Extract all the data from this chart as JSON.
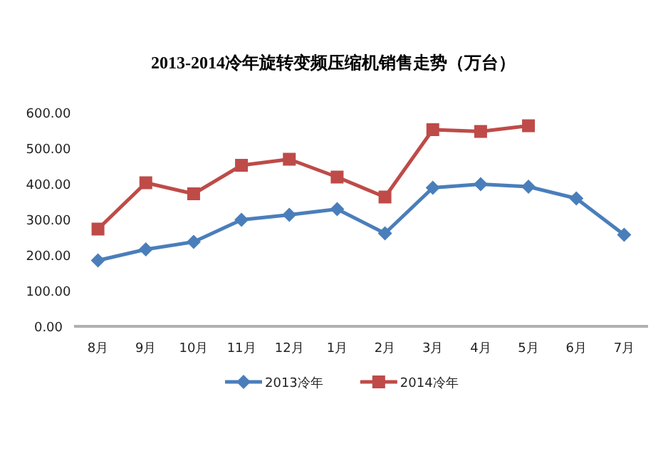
{
  "chart_data": {
    "type": "line",
    "title": "2013-2014冷年旋转变频压缩机销售走势（万台）",
    "categories": [
      "8月",
      "9月",
      "10月",
      "11月",
      "12月",
      "1月",
      "2月",
      "3月",
      "4月",
      "5月",
      "6月",
      "7月"
    ],
    "series": [
      {
        "name": "2013冷年",
        "color": "#4a7ebb",
        "marker": "diamond",
        "values": [
          185,
          216,
          237,
          299,
          313,
          329,
          261,
          389,
          399,
          392,
          359,
          257
        ]
      },
      {
        "name": "2014冷年",
        "color": "#be4b48",
        "marker": "square",
        "values": [
          273,
          403,
          372,
          452,
          469,
          419,
          363,
          552,
          547,
          563,
          null,
          null
        ]
      }
    ],
    "ylim": [
      0,
      600
    ],
    "yticks": [
      {
        "value": 0,
        "label": "0.00"
      },
      {
        "value": 100,
        "label": "100.00"
      },
      {
        "value": 200,
        "label": "200.00"
      },
      {
        "value": 300,
        "label": "300.00"
      },
      {
        "value": 400,
        "label": "400.00"
      },
      {
        "value": 500,
        "label": "500.00"
      },
      {
        "value": 600,
        "label": "600.00"
      }
    ],
    "grid": false,
    "legend": "bottom",
    "line_style": "solid"
  }
}
